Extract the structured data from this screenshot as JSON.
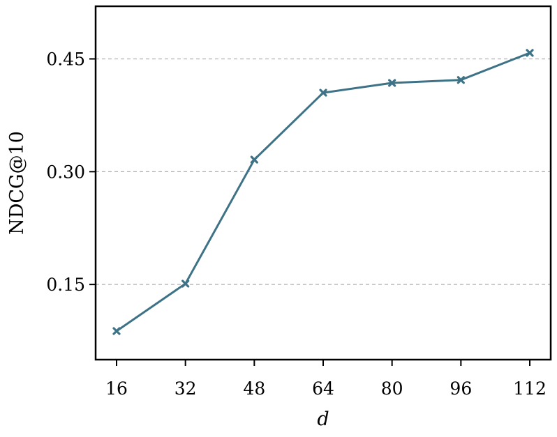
{
  "chart_data": {
    "type": "line",
    "title": "",
    "xlabel": "d",
    "ylabel": "NDCG@10",
    "categories": [
      "16",
      "32",
      "48",
      "64",
      "80",
      "96",
      "112"
    ],
    "x": [
      16,
      32,
      48,
      64,
      80,
      96,
      112
    ],
    "series": [
      {
        "values": [
          0.088,
          0.151,
          0.316,
          0.405,
          0.418,
          0.422,
          0.458
        ],
        "marker": "x"
      }
    ],
    "yticks": [
      "0.15",
      "0.30",
      "0.45"
    ],
    "ytick_values": [
      0.15,
      0.3,
      0.45
    ],
    "ylim": [
      0.05,
      0.52
    ],
    "grid": "horizontal dashed",
    "legend": "none",
    "colors": {
      "line": "#3e7387",
      "grid": "#b0b0b0",
      "axis": "#000000"
    }
  }
}
